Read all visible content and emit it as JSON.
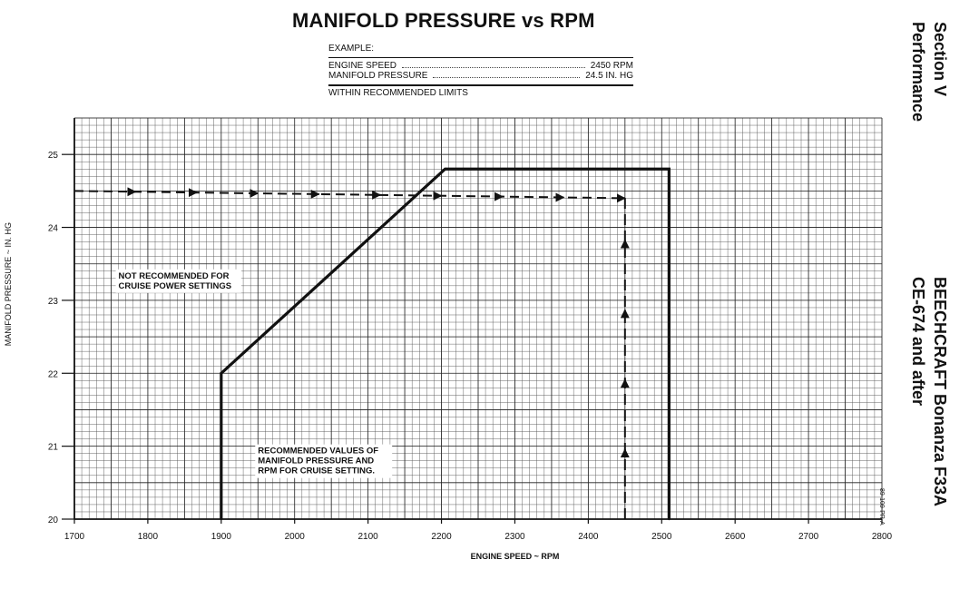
{
  "chart_data": {
    "type": "line",
    "title": "MANIFOLD PRESSURE vs RPM",
    "xlabel": "ENGINE SPEED ~ RPM",
    "ylabel": "MANIFOLD PRESSURE ~ IN. HG",
    "xlim": [
      1700,
      2800
    ],
    "ylim": [
      20,
      25.5
    ],
    "xticks": [
      1700,
      1800,
      1900,
      2000,
      2100,
      2200,
      2300,
      2400,
      2500,
      2600,
      2700,
      2800
    ],
    "yticks": [
      20,
      21,
      22,
      23,
      24,
      25
    ],
    "grid": true,
    "series": [
      {
        "values": [
          {
            "x": 1900,
            "y": 20
          },
          {
            "x": 1900,
            "y": 22
          },
          {
            "x": 2205,
            "y": 24.8
          },
          {
            "x": 2510,
            "y": 24.8
          },
          {
            "x": 2510,
            "y": 20
          }
        ]
      }
    ],
    "example_path": {
      "horizontal": [
        {
          "x": 1700,
          "y": 24.5
        },
        {
          "x": 2450,
          "y": 24.4
        }
      ],
      "vertical": [
        {
          "x": 2450,
          "y": 20
        },
        {
          "x": 2450,
          "y": 24.4
        }
      ]
    },
    "annotations": [
      {
        "lines": [
          "NOT RECOMMENDED FOR",
          "CRUISE POWER SETTINGS"
        ],
        "x": 1760,
        "y": 23.3
      },
      {
        "lines": [
          "RECOMMENDED VALUES OF",
          "MANIFOLD PRESSURE AND",
          "RPM FOR CRUISE SETTING."
        ],
        "x": 1950,
        "y": 20.9
      }
    ]
  },
  "example": {
    "label": "EXAMPLE:",
    "engine_speed_label": "ENGINE SPEED",
    "engine_speed_value": "2450 RPM",
    "manifold_pressure_label": "MANIFOLD PRESSURE",
    "manifold_pressure_value": "24.5 IN. HG",
    "within_text": "WITHIN RECOMMENDED LIMITS"
  },
  "section": {
    "line1": "Section V",
    "line2": "Performance"
  },
  "brand": {
    "line1": "BEECHCRAFT Bonanza F33A",
    "line2": "CE-674 and after"
  },
  "figure_number": "89-109-PR-A"
}
